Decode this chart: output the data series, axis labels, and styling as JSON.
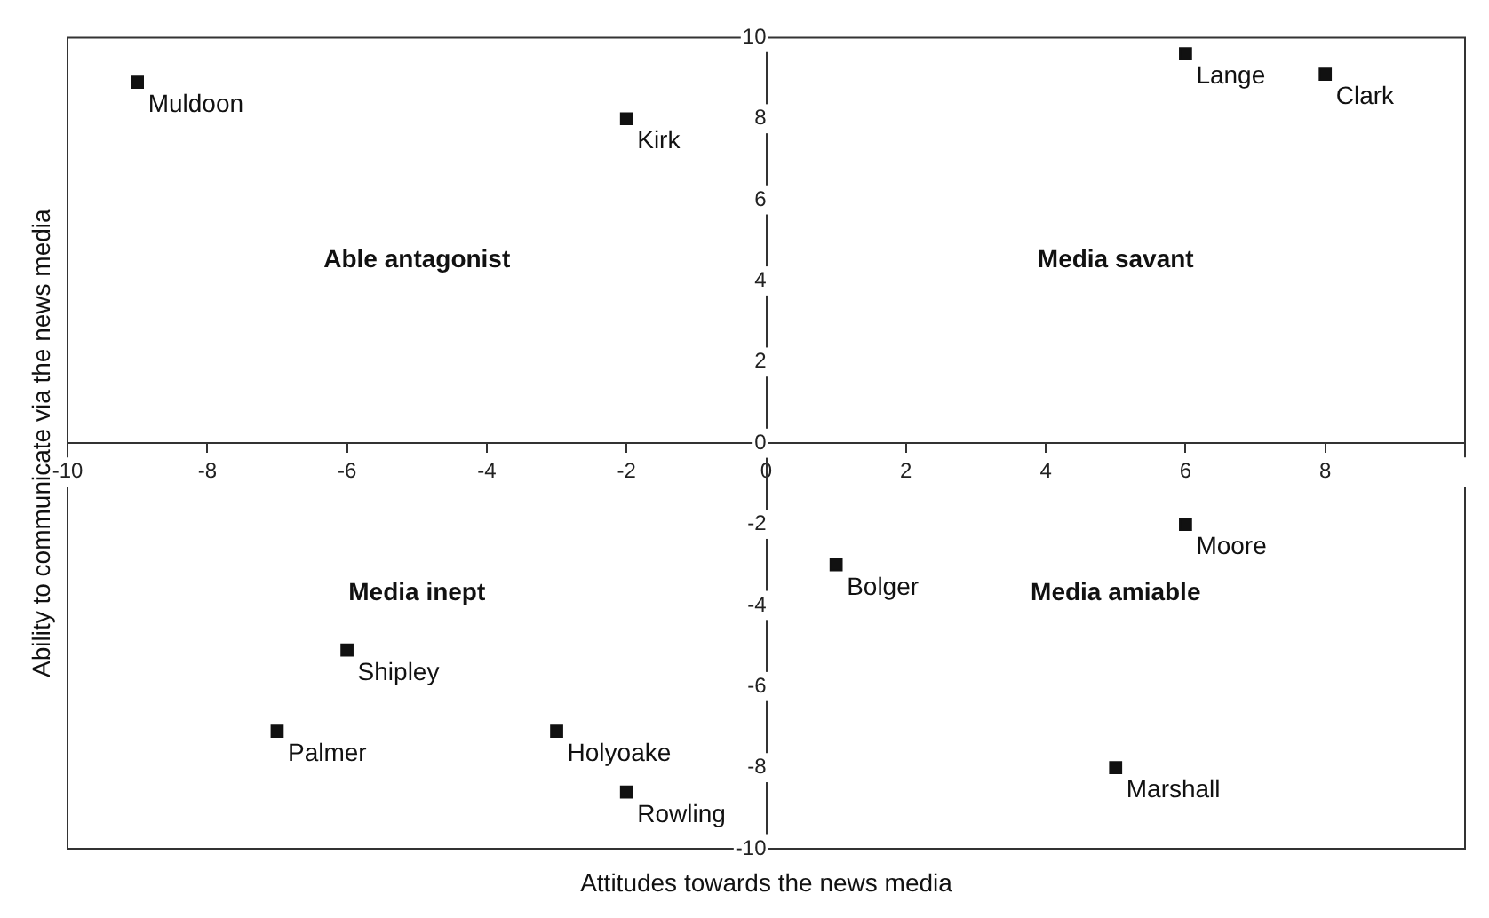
{
  "chart_data": {
    "type": "scatter",
    "xlabel": "Attitudes towards the news media",
    "ylabel": "Ability to communicate via the news media",
    "series": [
      {
        "color": "#111111",
        "x": [
          -9,
          -2,
          6,
          8,
          1,
          6,
          5,
          -6,
          -7,
          -3,
          -2
        ],
        "values": [
          8.9,
          8,
          9.6,
          9.1,
          -3,
          -2,
          -8,
          -5.1,
          -7.1,
          -7.1,
          -8.6
        ]
      }
    ],
    "xlim": [
      -10,
      10
    ],
    "ylim": [
      -10,
      10
    ],
    "xticks": [
      -10,
      -8,
      -6,
      -4,
      -2,
      0,
      2,
      4,
      6,
      8,
      {
        "value": 10,
        "label": null
      }
    ],
    "yticks": [
      -10,
      -8,
      -6,
      -4,
      -2,
      0,
      2,
      4,
      6,
      8,
      10
    ],
    "annotations": [
      "Able antagonist",
      "Media savant",
      "Media inept",
      "Media amiable",
      {
        "text": "Muldoon",
        "x": -9,
        "y": 8.9
      },
      {
        "text": "Kirk",
        "x": -2,
        "y": 8
      },
      {
        "text": "Lange",
        "x": 6,
        "y": 9.6
      },
      {
        "text": "Clark",
        "x": 8,
        "y": 9.1
      },
      {
        "text": "Bolger",
        "x": 1,
        "y": -3
      },
      {
        "text": "Moore",
        "x": 6,
        "y": -2
      },
      {
        "text": "Marshall",
        "x": 5,
        "y": -8
      },
      {
        "text": "Shipley",
        "x": -6,
        "y": -5.1
      },
      {
        "text": "Palmer",
        "x": -7,
        "y": -7.1
      },
      {
        "text": "Holyoake",
        "x": -3,
        "y": -7.1
      },
      {
        "text": "Rowling",
        "x": -2,
        "y": -8.6
      }
    ],
    "marker": "square",
    "grid": false,
    "legend": false
  }
}
